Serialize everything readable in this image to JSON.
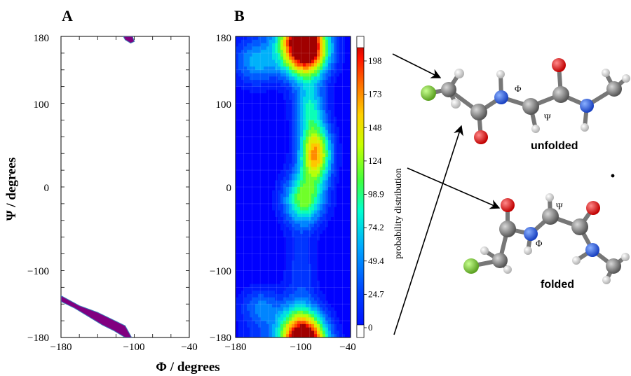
{
  "panels": {
    "a_label": "A",
    "b_label": "B"
  },
  "axes": {
    "xlabel": "Φ / degrees",
    "ylabel": "Ψ / degrees",
    "x_ticks": [
      "−180",
      "−100",
      "−40"
    ],
    "y_ticks": [
      "180",
      "100",
      "0",
      "−100",
      "−180"
    ],
    "b_x_ticks": [
      "−180",
      "−100",
      "−40"
    ],
    "b_y_ticks": [
      "180",
      "100",
      "0",
      "−100",
      "−180"
    ]
  },
  "colorbar": {
    "title": "probability distribution",
    "ticks": [
      "198",
      "173",
      "148",
      "124",
      "98.9",
      "74.2",
      "49.4",
      "24.7",
      "0"
    ]
  },
  "molecules": {
    "unfolded_label": "unfolded",
    "folded_label": "folded",
    "phi_symbol": "Φ",
    "psi_symbol": "Ψ"
  },
  "chart_data": [
    {
      "type": "area",
      "panel": "A",
      "xlabel": "Φ / degrees",
      "ylabel": "Ψ / degrees",
      "xlim": [
        -180,
        -40
      ],
      "ylim": [
        -180,
        180
      ],
      "fill_color": "#800080",
      "regions": [
        {
          "name": "",
          "phi": [
            -112,
            -102,
            -100,
            -104,
            -110
          ],
          "psi": [
            180,
            180,
            174,
            172,
            176
          ]
        },
        {
          "name": "",
          "phi": [
            -180,
            -160,
            -140,
            -125,
            -110,
            -103,
            -110,
            -122,
            -135,
            -150,
            -165,
            -180
          ],
          "psi": [
            -130,
            -142,
            -150,
            -158,
            -166,
            -180,
            -180,
            -172,
            -165,
            -155,
            -145,
            -137
          ]
        }
      ]
    },
    {
      "type": "heatmap",
      "panel": "B",
      "xlabel": "Φ / degrees",
      "ylabel": "Ψ / degrees",
      "xlim": [
        -180,
        -40
      ],
      "ylim": [
        -180,
        180
      ],
      "colorbar_title": "probability distribution",
      "colorbar_ticks": [
        0,
        24.7,
        49.4,
        74.2,
        98.9,
        124,
        148,
        173,
        198
      ],
      "vmax": 210,
      "peaks": [
        {
          "phi": -95,
          "psi": 160,
          "value": 205,
          "sphi": 20,
          "spsi": 22
        },
        {
          "phi": -83,
          "psi": 40,
          "value": 170,
          "sphi": 14,
          "spsi": 24
        },
        {
          "phi": -97,
          "psi": -15,
          "value": 120,
          "sphi": 18,
          "spsi": 22
        },
        {
          "phi": -100,
          "psi": -172,
          "value": 150,
          "sphi": 20,
          "spsi": 22
        },
        {
          "phi": -155,
          "psi": 150,
          "value": 70,
          "sphi": 20,
          "spsi": 20
        },
        {
          "phi": -90,
          "psi": 95,
          "value": 85,
          "sphi": 14,
          "spsi": 22
        },
        {
          "phi": -150,
          "psi": -145,
          "value": 55,
          "sphi": 18,
          "spsi": 18
        },
        {
          "phi": -100,
          "psi": -100,
          "value": 35,
          "sphi": 14,
          "spsi": 35
        }
      ]
    }
  ]
}
